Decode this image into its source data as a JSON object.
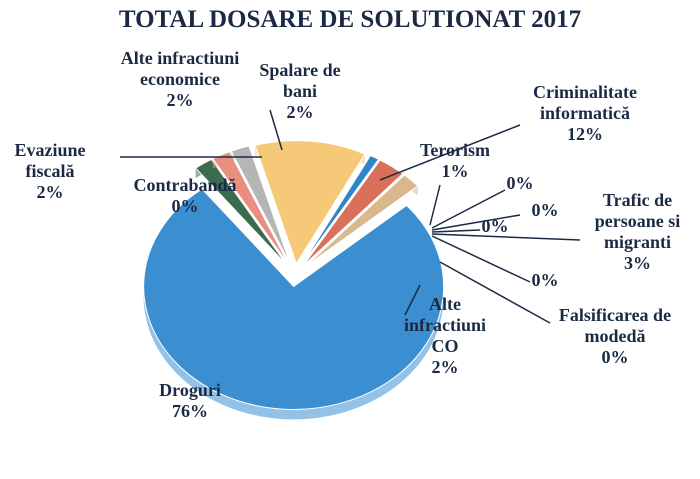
{
  "chart_data": {
    "type": "pie",
    "title": "TOTAL DOSARE DE SOLUTIONAT 2017",
    "categories": [
      "Criminalitate informatică",
      "Terorism",
      null,
      null,
      null,
      null,
      "Trafic de persoane si migranti",
      "Falsificarea de modedă",
      "Alte infractiuni CO",
      "Droguri",
      "Contrabandă",
      "Evaziune fiscală",
      "Alte infractiuni economice",
      "Spalare de bani"
    ],
    "values": [
      12,
      1,
      0,
      0,
      0,
      0,
      3,
      0,
      2,
      76,
      0,
      2,
      2,
      2
    ],
    "value_labels": [
      "12%",
      "1%",
      "0%",
      "0%",
      "0%",
      "0%",
      "3%",
      "0%",
      "2%",
      "76%",
      "0%",
      "2%",
      "2%",
      "2%"
    ],
    "colors": [
      "#f6c978",
      "#2f86c4",
      "#7fa7c9",
      "#9db3c2",
      "#8f8fa8",
      "#6b8e9f",
      "#d8705a",
      "#c9a77a",
      "#d9b88e",
      "#3b8fd1",
      "#4a6fa5",
      "#3d6b4f",
      "#e88f80",
      "#b5b5b5"
    ]
  }
}
